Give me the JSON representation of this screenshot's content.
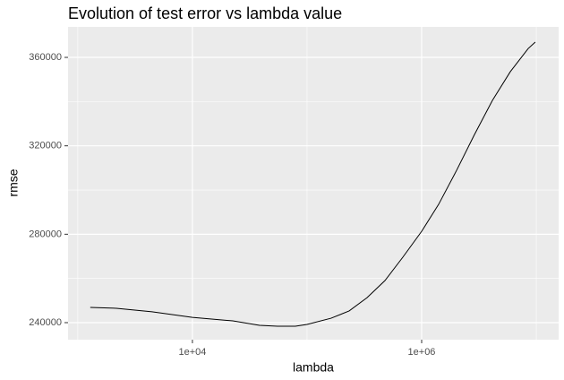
{
  "chart_data": {
    "type": "line",
    "title": "Evolution of test error vs lambda value",
    "x_label": "lambda",
    "y_label": "rmse",
    "x": [
      1285,
      2170,
      4440,
      10000,
      22500,
      38500,
      55200,
      79100,
      100000,
      162000,
      233000,
      334000,
      478000,
      685000,
      1000000,
      1406000,
      2018000,
      2890000,
      4140000,
      5930000,
      8500000,
      9800000
    ],
    "series": [
      {
        "color": "#000000",
        "values": [
          246900,
          246500,
          244900,
          242400,
          240800,
          238800,
          238400,
          238400,
          239200,
          242000,
          245300,
          251300,
          259000,
          269600,
          281300,
          293500,
          308900,
          325100,
          340500,
          353500,
          364000,
          366900
        ]
      }
    ],
    "xlog": true,
    "xlim": [
      822,
      15670000
    ],
    "ylim": [
      232300,
      373800
    ],
    "xticks": [
      {
        "value": 10000,
        "label": "1e+04"
      },
      {
        "value": 1000000,
        "label": "1e+06"
      }
    ],
    "yticks": [
      240000,
      280000,
      320000,
      360000
    ],
    "x_minor_grid": [
      1000,
      100000,
      10000000
    ],
    "y_minor_grid": [
      260000,
      300000,
      340000
    ],
    "grid": true
  }
}
